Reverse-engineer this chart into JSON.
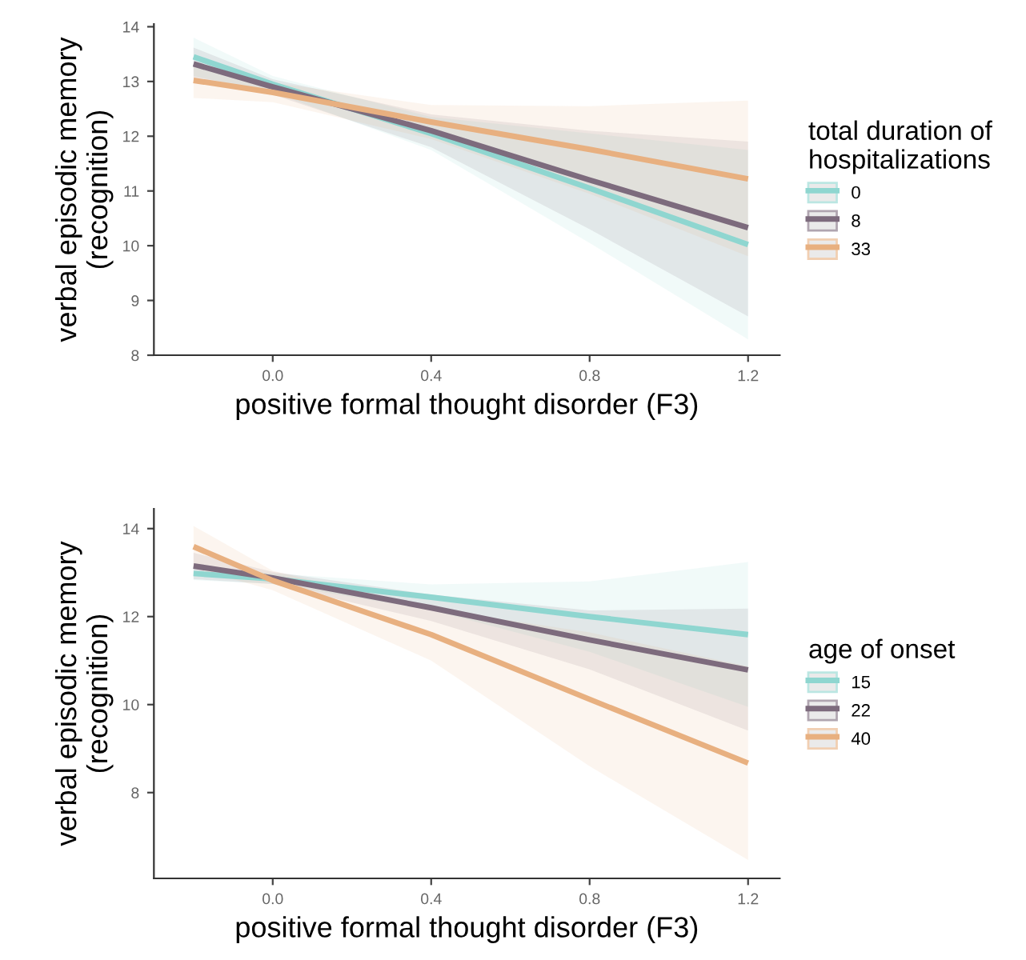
{
  "chart_data": [
    {
      "type": "line",
      "xlabel": "positive formal thought disorder (F3)",
      "ylabel": "verbal episodic memory\n(recognition)",
      "legend_title": "total duration of\nhospitalizations",
      "legend": "right",
      "grid": false,
      "marker": "none",
      "line_style": "solid",
      "x": [
        -0.2,
        0.0,
        0.4,
        0.8,
        1.2
      ],
      "xlim": [
        -0.3,
        1.28
      ],
      "xticks": [
        {
          "value": 0,
          "label": "0.0"
        },
        0.4,
        0.8,
        1.2
      ],
      "ylim": [
        8,
        14.05
      ],
      "yticks": [
        8,
        9,
        10,
        11,
        12,
        13,
        14
      ],
      "series": [
        {
          "name": "0",
          "color": "#8fd6d0",
          "values": [
            13.45,
            12.95,
            12.05,
            11.05,
            10.02
          ],
          "lower": [
            13.1,
            12.8,
            11.75,
            10.05,
            8.29
          ],
          "upper": [
            13.8,
            13.1,
            12.35,
            12.05,
            11.75
          ]
        },
        {
          "name": "8",
          "color": "#7d6b7d",
          "values": [
            13.32,
            12.9,
            12.1,
            11.2,
            10.33
          ],
          "lower": [
            13.02,
            12.76,
            11.8,
            10.3,
            8.71
          ],
          "upper": [
            13.62,
            13.04,
            12.4,
            12.1,
            11.9
          ]
        },
        {
          "name": "33",
          "color": "#e8b080",
          "values": [
            13.02,
            12.8,
            12.26,
            11.76,
            11.22
          ],
          "lower": [
            12.7,
            12.62,
            11.95,
            10.95,
            9.81
          ],
          "upper": [
            13.35,
            12.98,
            12.57,
            12.55,
            12.65
          ]
        }
      ]
    },
    {
      "type": "line",
      "xlabel": "positive formal thought disorder (F3)",
      "ylabel": "verbal episodic memory\n(recognition)",
      "legend_title": "age of onset",
      "legend": "right",
      "grid": false,
      "marker": "none",
      "line_style": "solid",
      "x": [
        -0.2,
        0.0,
        0.4,
        0.8,
        1.2
      ],
      "xlim": [
        -0.3,
        1.28
      ],
      "xticks": [
        {
          "value": 0,
          "label": "0.0"
        },
        0.4,
        0.8,
        1.2
      ],
      "ylim": [
        6.05,
        14.45
      ],
      "yticks": [
        8,
        10,
        12,
        14
      ],
      "series": [
        {
          "name": "15",
          "color": "#8fd6d0",
          "values": [
            12.98,
            12.86,
            12.44,
            12.0,
            11.59
          ],
          "lower": [
            12.83,
            12.74,
            12.15,
            11.2,
            9.95
          ],
          "upper": [
            13.13,
            12.98,
            12.73,
            12.8,
            13.24
          ]
        },
        {
          "name": "22",
          "color": "#7d6b7d",
          "values": [
            13.15,
            12.88,
            12.2,
            11.47,
            10.79
          ],
          "lower": [
            12.85,
            12.74,
            11.9,
            10.8,
            9.41
          ],
          "upper": [
            13.45,
            13.02,
            12.5,
            12.14,
            12.18
          ]
        },
        {
          "name": "40",
          "color": "#e8b080",
          "values": [
            13.59,
            12.82,
            11.59,
            10.12,
            8.67
          ],
          "lower": [
            13.1,
            12.6,
            11.0,
            8.6,
            6.47
          ],
          "upper": [
            14.06,
            13.04,
            12.18,
            11.64,
            10.87
          ]
        }
      ]
    }
  ]
}
